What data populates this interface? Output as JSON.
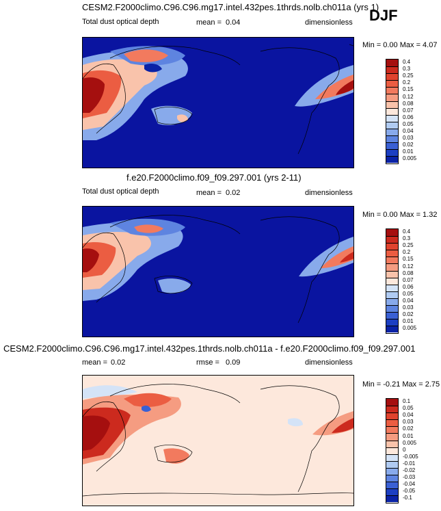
{
  "season": "DJF",
  "chart_data": [
    {
      "type": "heatmap",
      "title": "CESM2.F2000climo.C96.C96.mg17.intel.432pes.1thrds.nolb.ch011a (yrs 1)",
      "variable": "Total dust optical depth",
      "stat_label": "mean =",
      "stat_value": "0.04",
      "units": "dimensionless",
      "range_text": "Min =  0.00 Max =  4.07",
      "levels": [
        "0.4",
        "0.3",
        "0.25",
        "0.2",
        "0.15",
        "0.12",
        "0.08",
        "0.07",
        "0.06",
        "0.05",
        "0.04",
        "0.03",
        "0.02",
        "0.01",
        "0.005"
      ],
      "colors": [
        "#a50f0f",
        "#cc2a1e",
        "#e0432e",
        "#eb5d42",
        "#f27a5e",
        "#f59c81",
        "#f9c3ab",
        "#fde8dc",
        "#d4e3f7",
        "#b0cbf2",
        "#88aaeb",
        "#5e84e0",
        "#3a60d4",
        "#1c3fc3",
        "#0a22a6"
      ],
      "background_color": "#0a14a0"
    },
    {
      "type": "heatmap",
      "title": "f.e20.F2000climo.f09_f09.297.001 (yrs 2-11)",
      "variable": "Total dust optical depth",
      "stat_label": "mean =",
      "stat_value": "0.02",
      "units": "dimensionless",
      "range_text": "Min =  0.00 Max =  1.32",
      "levels": [
        "0.4",
        "0.3",
        "0.25",
        "0.2",
        "0.15",
        "0.12",
        "0.08",
        "0.07",
        "0.06",
        "0.05",
        "0.04",
        "0.03",
        "0.02",
        "0.01",
        "0.005"
      ],
      "colors": [
        "#a50f0f",
        "#cc2a1e",
        "#e0432e",
        "#eb5d42",
        "#f27a5e",
        "#f59c81",
        "#f9c3ab",
        "#fde8dc",
        "#d4e3f7",
        "#b0cbf2",
        "#88aaeb",
        "#5e84e0",
        "#3a60d4",
        "#1c3fc3",
        "#0a22a6"
      ],
      "background_color": "#0a14a0"
    },
    {
      "type": "heatmap",
      "title": "CESM2.F2000climo.C96.C96.mg17.intel.432pes.1thrds.nolb.ch011a - f.e20.F2000climo.f09_f09.297.001",
      "variable": "",
      "stat_label": "mean =",
      "stat_value": "0.02",
      "rmse_label": "rmse =",
      "rmse_value": "0.09",
      "units": "dimensionless",
      "range_text": "Min = -0.21 Max =  2.75",
      "levels": [
        "0.1",
        "0.05",
        "0.04",
        "0.03",
        "0.02",
        "0.01",
        "0.005",
        "0",
        "-0.005",
        "-0.01",
        "-0.02",
        "-0.03",
        "-0.04",
        "-0.05",
        "-0.1"
      ],
      "colors": [
        "#a50f0f",
        "#cc2a1e",
        "#e0432e",
        "#eb5d42",
        "#f27a5e",
        "#f59c81",
        "#f9c3ab",
        "#fde8dc",
        "#d4e3f7",
        "#b0cbf2",
        "#88aaeb",
        "#5e84e0",
        "#3a60d4",
        "#1c3fc3",
        "#0a22a6"
      ],
      "background_color": "#fde8dc"
    }
  ]
}
